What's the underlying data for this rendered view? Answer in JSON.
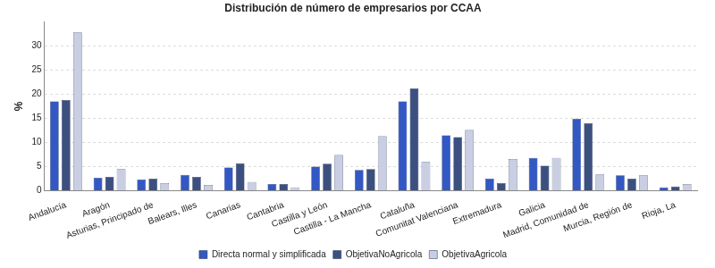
{
  "chart_data": {
    "type": "bar",
    "title": "Distribución de número de empresarios por CCAA",
    "y_label": "%",
    "categories": [
      "Andalucía",
      "Aragón",
      "Asturias, Principado de",
      "Balears, Illes",
      "Canarias",
      "Cantabria",
      "Castilla y León",
      "Castilla - La Mancha",
      "Cataluña",
      "Comunitat Valenciana",
      "Extremadura",
      "Galicia",
      "Madrid, Comunidad de",
      "Murcia, Región de",
      "Rioja, La"
    ],
    "series": [
      {
        "name": "Directa normal y simplificada",
        "color": "#3358c4",
        "values": [
          18.5,
          2.7,
          2.3,
          3.3,
          4.8,
          1.4,
          5.0,
          4.3,
          18.5,
          11.5,
          2.5,
          6.8,
          14.9,
          3.2,
          0.7
        ]
      },
      {
        "name": "ObjetivaNoAgricola",
        "color": "#3c5080",
        "values": [
          18.8,
          2.9,
          2.5,
          2.9,
          5.7,
          1.4,
          5.6,
          4.5,
          21.2,
          11.1,
          1.6,
          5.2,
          14.0,
          2.5,
          0.9
        ]
      },
      {
        "name": "ObjetivaAgricola",
        "color": "#c9cee2",
        "values": [
          32.8,
          4.5,
          1.6,
          1.2,
          1.8,
          0.7,
          7.4,
          11.3,
          6.0,
          12.6,
          6.6,
          6.8,
          3.4,
          3.2,
          1.4
        ]
      }
    ],
    "ylim": [
      0,
      35
    ],
    "yticks": [
      0,
      5,
      10,
      15,
      20,
      25,
      30
    ],
    "grid": true,
    "legend": "bottom"
  }
}
